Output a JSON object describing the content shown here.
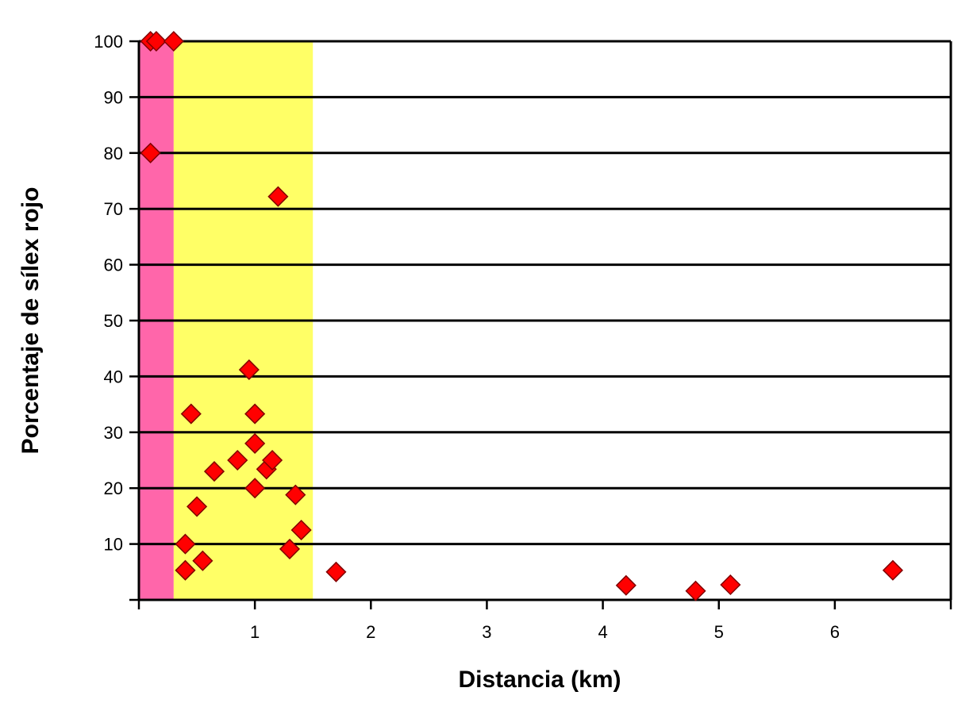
{
  "chart_data": {
    "type": "scatter",
    "title": "",
    "xlabel": "Distancia (km)",
    "ylabel": "Porcentaje de sílex rojo",
    "xlim": [
      0,
      7
    ],
    "ylim": [
      0,
      100
    ],
    "x_ticks": [
      1,
      2,
      3,
      4,
      5,
      6
    ],
    "y_ticks": [
      10,
      20,
      30,
      40,
      50,
      60,
      70,
      80,
      90,
      100
    ],
    "grid": "horizontal",
    "legend": "none",
    "bands": [
      {
        "x_start": 0,
        "x_end": 0.3,
        "color": "#ff66aa"
      },
      {
        "x_start": 0.3,
        "x_end": 1.5,
        "color": "#ffff66"
      }
    ],
    "marker": {
      "shape": "diamond",
      "fill": "#ff0000",
      "stroke": "#800000"
    },
    "points": [
      {
        "x": 0.1,
        "y": 100
      },
      {
        "x": 0.15,
        "y": 100
      },
      {
        "x": 0.3,
        "y": 100
      },
      {
        "x": 0.1,
        "y": 80
      },
      {
        "x": 1.2,
        "y": 72.2
      },
      {
        "x": 0.95,
        "y": 41.2
      },
      {
        "x": 0.45,
        "y": 33.3
      },
      {
        "x": 1.0,
        "y": 33.3
      },
      {
        "x": 1.0,
        "y": 28.0
      },
      {
        "x": 0.65,
        "y": 23.0
      },
      {
        "x": 0.85,
        "y": 25.0
      },
      {
        "x": 1.1,
        "y": 23.4
      },
      {
        "x": 1.15,
        "y": 25.0
      },
      {
        "x": 1.0,
        "y": 20.0
      },
      {
        "x": 0.5,
        "y": 16.7
      },
      {
        "x": 1.35,
        "y": 18.8
      },
      {
        "x": 0.4,
        "y": 10.0
      },
      {
        "x": 1.4,
        "y": 12.5
      },
      {
        "x": 0.55,
        "y": 7.0
      },
      {
        "x": 1.3,
        "y": 9.1
      },
      {
        "x": 0.4,
        "y": 5.3
      },
      {
        "x": 1.7,
        "y": 5.0
      },
      {
        "x": 4.2,
        "y": 2.6
      },
      {
        "x": 4.8,
        "y": 1.6
      },
      {
        "x": 5.1,
        "y": 2.7
      },
      {
        "x": 6.5,
        "y": 5.3
      }
    ]
  }
}
